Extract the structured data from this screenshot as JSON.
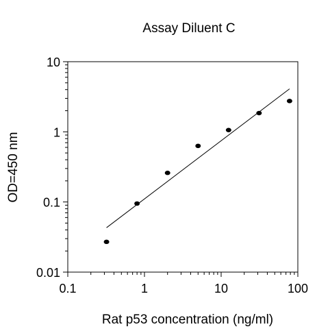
{
  "chart_data": {
    "type": "scatter",
    "title": "Assay Diluent C",
    "xlabel": "Rat p53 concentration (ng/ml)",
    "ylabel": "OD=450 nm",
    "xscale": "log",
    "yscale": "log",
    "xlim": [
      0.1,
      100
    ],
    "ylim": [
      0.01,
      10
    ],
    "xticks": [
      0.1,
      1,
      10,
      100
    ],
    "xtick_labels": [
      "0.1",
      "1",
      "10",
      "100"
    ],
    "yticks": [
      0.01,
      0.1,
      1,
      10
    ],
    "ytick_labels": [
      "0.01",
      "0.1",
      "1",
      "10"
    ],
    "grid": false,
    "legend": "none",
    "series": [
      {
        "marker": "circle",
        "color": "#000000",
        "x": [
          0.32,
          0.8,
          2.0,
          5.0,
          12.5,
          31.2,
          78.0
        ],
        "y": [
          0.027,
          0.095,
          0.26,
          0.63,
          1.06,
          1.85,
          2.75
        ]
      }
    ],
    "fit_line": {
      "color": "#000000",
      "x": [
        0.32,
        78.0
      ],
      "y": [
        0.043,
        4.1
      ]
    }
  }
}
